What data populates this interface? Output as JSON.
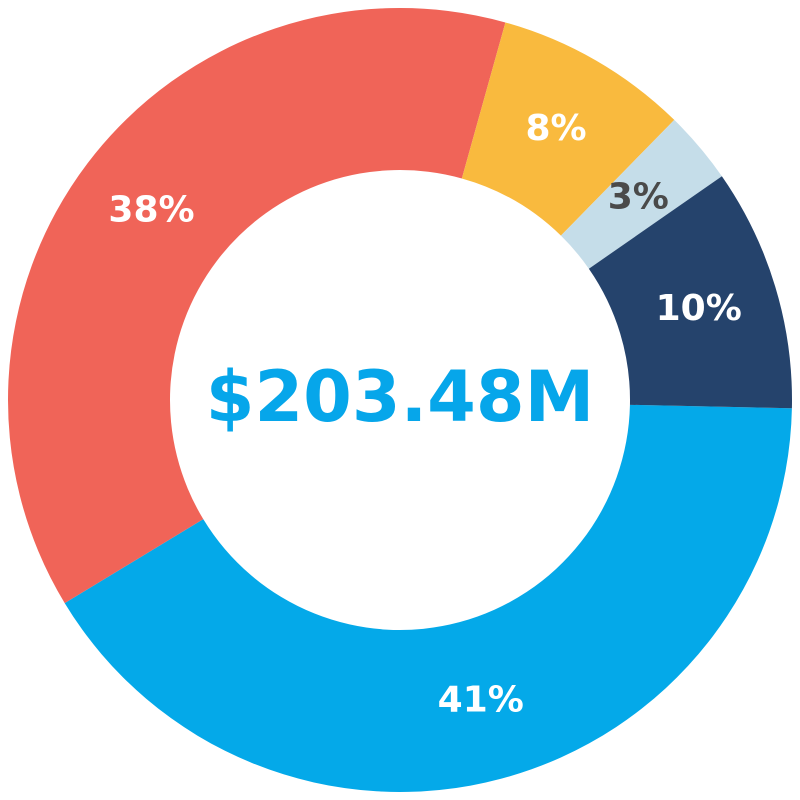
{
  "chart_data": {
    "type": "donut",
    "center_label": "$203.48M",
    "center_label_color": "#06a6ea",
    "categories": [
      null,
      null,
      null,
      null,
      null
    ],
    "values": [
      41,
      38,
      8,
      3,
      10
    ],
    "value_labels": [
      "41%",
      "38%",
      "8%",
      "3%",
      "10%"
    ],
    "colors": [
      "#04a9e9",
      "#f06458",
      "#f9ba3e",
      "#c5dde9",
      "#25436c"
    ],
    "label_colors": [
      "#ffffff",
      "#ffffff",
      "#ffffff",
      "#4a4a4a",
      "#ffffff"
    ]
  }
}
